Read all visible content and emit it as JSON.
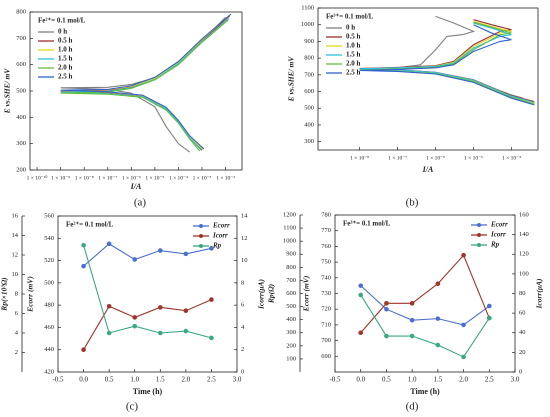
{
  "chart_data": [
    {
      "type": "line",
      "caption": "(a)",
      "annotation": "Fe²⁺= 0.1 mol/L",
      "xlabel": "I/A",
      "ylabel": "E vs.SHE/ mV",
      "xscale": "log",
      "xlim": [
        5e-11,
        0.05
      ],
      "xticks": [
        {
          "value": 1e-10,
          "label": "1 × 10⁻¹⁰"
        },
        {
          "value": 1e-09,
          "label": "1 × 10⁻⁹"
        },
        {
          "value": 1e-08,
          "label": "1 × 10⁻⁸"
        },
        {
          "value": 1e-07,
          "label": "1 × 10⁻⁷"
        },
        {
          "value": 1e-06,
          "label": "1 × 10⁻⁶"
        },
        {
          "value": 1e-05,
          "label": "1 × 10⁻⁵"
        },
        {
          "value": 0.0001,
          "label": "1 × 10⁻⁴"
        },
        {
          "value": 0.001,
          "label": "1 × 10⁻³"
        },
        {
          "value": 0.01,
          "label": "1 × 10⁻²"
        }
      ],
      "ylim": [
        200,
        800
      ],
      "yticks": [
        200,
        300,
        400,
        500,
        600,
        700,
        800
      ],
      "legend": "upper left",
      "series": [
        {
          "name": "0 h",
          "color": "#7f7f7f",
          "x": [
            0.0003,
            0.0001,
            3e-05,
            1e-05,
            1e-06,
            1e-07,
            1e-09,
            1e-07,
            1e-06,
            1e-05,
            0.0001,
            0.001,
            0.01
          ],
          "values": [
            268,
            300,
            365,
            440,
            492,
            506,
            512,
            514,
            525,
            550,
            610,
            690,
            780
          ]
        },
        {
          "name": "0.5 h",
          "color": "#a0302a",
          "x": [
            0.001,
            0.0003,
            0.0001,
            3e-05,
            3e-06,
            1e-07,
            1e-09,
            1e-07,
            1e-06,
            1e-05,
            0.0001,
            0.001,
            0.015
          ],
          "values": [
            275,
            320,
            380,
            430,
            480,
            494,
            500,
            503,
            515,
            545,
            605,
            690,
            785
          ]
        },
        {
          "name": "1.0 h",
          "color": "#e0d820",
          "x": [
            0.0011,
            0.0003,
            0.0001,
            3e-05,
            3e-06,
            1e-07,
            1e-09,
            1e-07,
            1e-06,
            1e-05,
            0.0001,
            0.001,
            0.016
          ],
          "values": [
            278,
            325,
            385,
            435,
            482,
            496,
            502,
            505,
            517,
            548,
            608,
            695,
            790
          ]
        },
        {
          "name": "1.5 h",
          "color": "#30c0e0",
          "x": [
            0.0009,
            0.0003,
            0.0001,
            3e-05,
            3e-06,
            1e-07,
            1e-09,
            1e-07,
            1e-06,
            1e-05,
            0.0001,
            0.001,
            0.014
          ],
          "values": [
            276,
            322,
            382,
            432,
            478,
            490,
            495,
            498,
            512,
            544,
            604,
            688,
            775
          ]
        },
        {
          "name": "2.0 h",
          "color": "#60c040",
          "x": [
            0.0008,
            0.0003,
            0.0001,
            3e-05,
            3e-06,
            1e-07,
            1e-09,
            1e-07,
            1e-06,
            1e-05,
            0.0001,
            0.001,
            0.013
          ],
          "values": [
            272,
            318,
            378,
            428,
            476,
            488,
            492,
            496,
            510,
            542,
            600,
            685,
            770
          ]
        },
        {
          "name": "2.5 h",
          "color": "#3060d0",
          "x": [
            0.0012,
            0.0003,
            0.0001,
            3e-05,
            3e-06,
            1e-07,
            1e-09,
            1e-07,
            1e-06,
            1e-05,
            0.0001,
            0.001,
            0.017
          ],
          "values": [
            280,
            330,
            388,
            438,
            484,
            497,
            503,
            506,
            520,
            552,
            612,
            698,
            792
          ]
        }
      ]
    },
    {
      "type": "line",
      "caption": "(b)",
      "annotation": "Fe³⁺= 0.1 mol/L",
      "xlabel": "I/A",
      "ylabel": "E vs.SHE/ mV",
      "xscale": "log",
      "xlim": [
        8e-10,
        0.0005
      ],
      "xticks": [
        {
          "value": 1e-08,
          "label": "1 × 10⁻⁸"
        },
        {
          "value": 1e-07,
          "label": "1 × 10⁻⁷"
        },
        {
          "value": 1e-06,
          "label": "1 × 10⁻⁶"
        },
        {
          "value": 1e-05,
          "label": "1 × 10⁻⁵"
        },
        {
          "value": 0.0001,
          "label": "1 × 10⁻⁴"
        }
      ],
      "ylim": [
        250,
        1100
      ],
      "yticks": [
        300,
        400,
        500,
        600,
        700,
        800,
        900,
        1000,
        1100
      ],
      "legend": "upper left",
      "series": [
        {
          "name": "0 h",
          "color": "#7f7f7f",
          "x": [
            0.0002,
            0.0001,
            1e-05,
            1e-06,
            1e-07,
            1e-08,
            1e-07,
            4e-07,
            1e-06,
            2e-06,
            5e-06,
            1e-05,
            3e-06,
            1e-06
          ],
          "values": [
            560,
            580,
            660,
            710,
            728,
            735,
            742,
            760,
            850,
            930,
            940,
            960,
            1010,
            1050
          ]
        },
        {
          "name": "0.5 h",
          "color": "#a0302a",
          "x": [
            0.0004,
            0.0001,
            1e-05,
            1e-06,
            1e-07,
            1e-08,
            1e-07,
            1e-06,
            3e-06,
            1e-05,
            5e-05,
            0.0001,
            3e-05,
            1e-05
          ],
          "values": [
            540,
            575,
            670,
            715,
            730,
            738,
            744,
            755,
            780,
            880,
            960,
            970,
            1000,
            1030
          ]
        },
        {
          "name": "1.0 h",
          "color": "#e0d820",
          "x": [
            0.0004,
            0.0001,
            1e-05,
            1e-06,
            1e-07,
            1e-08,
            1e-07,
            1e-06,
            3e-06,
            1e-05,
            5e-05,
            0.0001,
            3e-05,
            1e-05
          ],
          "values": [
            530,
            570,
            665,
            712,
            726,
            733,
            740,
            752,
            775,
            870,
            950,
            960,
            990,
            1020
          ]
        },
        {
          "name": "1.5 h",
          "color": "#30c0e0",
          "x": [
            0.0004,
            0.0001,
            1e-05,
            1e-06,
            1e-07,
            1e-08,
            1e-07,
            1e-06,
            3e-06,
            1e-05,
            5e-05,
            0.0001,
            3e-05,
            1e-05
          ],
          "values": [
            535,
            572,
            668,
            714,
            729,
            736,
            742,
            750,
            770,
            860,
            930,
            940,
            980,
            1010
          ]
        },
        {
          "name": "2.0 h",
          "color": "#60c040",
          "x": [
            0.0004,
            0.0001,
            1e-05,
            1e-06,
            1e-07,
            1e-08,
            1e-07,
            1e-06,
            3e-06,
            1e-05,
            5e-05,
            0.0001,
            3e-05,
            1e-05
          ],
          "values": [
            525,
            565,
            660,
            708,
            722,
            728,
            735,
            745,
            765,
            850,
            940,
            950,
            985,
            1015
          ]
        },
        {
          "name": "2.5 h",
          "color": "#3060d0",
          "x": [
            0.0004,
            0.0001,
            1e-05,
            1e-06,
            1e-07,
            1e-08,
            1e-07,
            1e-06,
            3e-06,
            1e-05,
            5e-05,
            0.0001,
            3e-05,
            1e-05
          ],
          "values": [
            520,
            560,
            655,
            705,
            720,
            726,
            732,
            742,
            760,
            840,
            900,
            910,
            950,
            1000
          ]
        }
      ]
    },
    {
      "type": "line",
      "caption": "(c)",
      "annotation": "Fe²⁺= 0.1 mol/L",
      "xlabel": "Time (h)",
      "ylabel": "Rp(×10³Ω)",
      "y2label": "Ecorr (mV)",
      "y3label": "Icorr(μA)",
      "markers": true,
      "x": [
        0,
        0.5,
        1,
        1.5,
        2,
        2.5
      ],
      "xlim": [
        -0.5,
        3
      ],
      "xticks": [
        -0.5,
        {
          "value": 0,
          "label": "0.0"
        },
        0.5,
        {
          "value": 1,
          "label": "1.0"
        },
        1.5,
        {
          "value": 2,
          "label": "2.0"
        },
        2.5,
        {
          "value": 3,
          "label": "3.0"
        }
      ],
      "ylim": [
        0,
        16
      ],
      "yticks": [
        2,
        4,
        6,
        8,
        10,
        12,
        14,
        16
      ],
      "y2lim": [
        420,
        560
      ],
      "y2ticks": [
        420,
        440,
        460,
        480,
        500,
        520,
        540,
        560
      ],
      "y3lim": [
        0,
        14
      ],
      "y3ticks": [
        0,
        2,
        4,
        6,
        8,
        10,
        12,
        14
      ],
      "legend": "upper right",
      "series": [
        {
          "name": "Ecorr",
          "color": "#4a6fd4",
          "axis": "y2",
          "values": [
            515,
            535,
            521,
            529,
            526,
            531
          ]
        },
        {
          "name": "Icorr",
          "color": "#a0342b",
          "axis": "y3",
          "values": [
            2.0,
            5.9,
            4.9,
            5.8,
            5.5,
            6.5
          ]
        },
        {
          "name": "Rp",
          "color": "#3aa882",
          "values": [
            13.0,
            4.0,
            4.7,
            4.0,
            4.2,
            3.5
          ]
        }
      ]
    },
    {
      "type": "line",
      "caption": "(d)",
      "annotation": "Fe³⁺= 0.1 mol/L",
      "xlabel": "Time (h)",
      "ylabel": "Rp(Ω)",
      "y2label": "Ecorr (mV)",
      "y3label": "Icorr(μA)",
      "markers": true,
      "x": [
        0,
        0.5,
        1,
        1.5,
        2,
        2.5
      ],
      "xlim": [
        -0.5,
        3
      ],
      "xticks": [
        -0.5,
        {
          "value": 0,
          "label": "0.0"
        },
        0.5,
        {
          "value": 1,
          "label": "1.0"
        },
        1.5,
        {
          "value": 2,
          "label": "2.0"
        },
        2.5,
        {
          "value": 3,
          "label": "3.0"
        }
      ],
      "ylim": [
        0,
        1200
      ],
      "yticks": [
        100,
        200,
        300,
        400,
        500,
        600,
        700,
        800,
        900,
        1000,
        1100,
        1200
      ],
      "y2lim": [
        680,
        780
      ],
      "y2ticks": [
        690,
        700,
        710,
        720,
        730,
        740,
        750,
        760,
        770,
        780
      ],
      "y3lim": [
        0,
        160
      ],
      "y3ticks": [
        0,
        20,
        40,
        60,
        80,
        100,
        120,
        140,
        160
      ],
      "legend": "upper right",
      "series": [
        {
          "name": "Ecorr",
          "color": "#4a6fd4",
          "axis": "y2",
          "values": [
            735,
            720,
            713,
            714,
            710,
            722
          ]
        },
        {
          "name": "Icorr",
          "color": "#a0342b",
          "axis": "y3",
          "values": [
            40,
            70,
            70,
            90,
            119,
            55
          ]
        },
        {
          "name": "Rp",
          "color": "#3aa882",
          "values": [
            589,
            275,
            275,
            206,
            115,
            413
          ]
        }
      ]
    }
  ]
}
